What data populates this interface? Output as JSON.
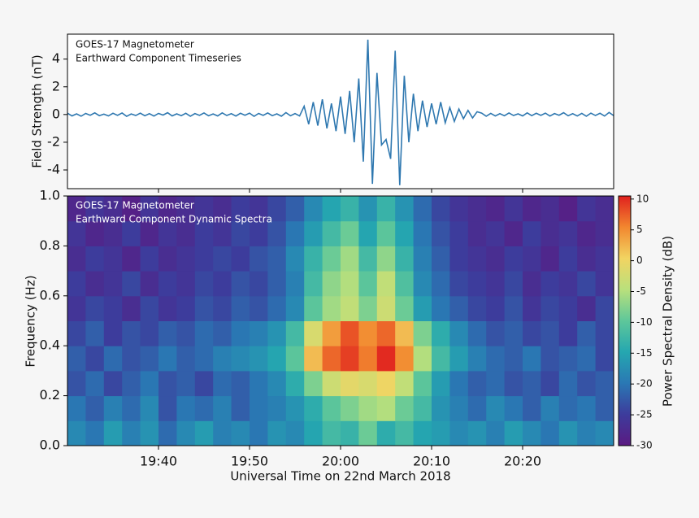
{
  "chart_data": [
    {
      "type": "line",
      "title": "GOES-17 Magnetometer",
      "subtitle": "Earthward Component Timeseries",
      "ylabel": "Field Strength (nT)",
      "xlim": [
        1170,
        1230
      ],
      "ylim": [
        -5.35,
        5.8
      ],
      "yticks": [
        -4,
        -2,
        0,
        2,
        4
      ],
      "color": "#2f78b0",
      "x": [
        1170,
        1170.5,
        1171,
        1171.5,
        1172,
        1172.5,
        1173,
        1173.5,
        1174,
        1174.5,
        1175,
        1175.5,
        1176,
        1176.5,
        1177,
        1177.5,
        1178,
        1178.5,
        1179,
        1179.5,
        1180,
        1180.5,
        1181,
        1181.5,
        1182,
        1182.5,
        1183,
        1183.5,
        1184,
        1184.5,
        1185,
        1185.5,
        1186,
        1186.5,
        1187,
        1187.5,
        1188,
        1188.5,
        1189,
        1189.5,
        1190,
        1190.5,
        1191,
        1191.5,
        1192,
        1192.5,
        1193,
        1193.5,
        1194,
        1194.5,
        1195,
        1195.5,
        1196,
        1196.5,
        1197,
        1197.5,
        1198,
        1198.5,
        1199,
        1199.5,
        1200,
        1200.5,
        1201,
        1201.5,
        1202,
        1202.5,
        1203,
        1203.5,
        1204,
        1204.5,
        1205,
        1205.5,
        1206,
        1206.5,
        1207,
        1207.5,
        1208,
        1208.5,
        1209,
        1209.5,
        1210,
        1210.5,
        1211,
        1211.5,
        1212,
        1212.5,
        1213,
        1213.5,
        1214,
        1214.5,
        1215,
        1215.5,
        1216,
        1216.5,
        1217,
        1217.5,
        1218,
        1218.5,
        1219,
        1219.5,
        1220,
        1220.5,
        1221,
        1221.5,
        1222,
        1222.5,
        1223,
        1223.5,
        1224,
        1224.5,
        1225,
        1225.5,
        1226,
        1226.5,
        1227,
        1227.5,
        1228,
        1228.5,
        1229,
        1229.5,
        1230
      ],
      "values": [
        0.1,
        -0.1,
        0.05,
        -0.12,
        0.08,
        -0.05,
        0.12,
        -0.08,
        0.03,
        -0.1,
        0.09,
        -0.06,
        0.11,
        -0.13,
        0.04,
        -0.07,
        0.1,
        -0.09,
        0.06,
        -0.11,
        0.08,
        -0.04,
        0.13,
        -0.1,
        0.05,
        -0.08,
        0.09,
        -0.12,
        0.07,
        -0.06,
        0.11,
        -0.09,
        0.04,
        -0.1,
        0.12,
        -0.07,
        0.06,
        -0.11,
        0.09,
        -0.05,
        0.1,
        -0.13,
        0.08,
        -0.06,
        0.11,
        -0.08,
        0.05,
        -0.12,
        0.14,
        -0.09,
        0.07,
        -0.1,
        0.6,
        -0.7,
        0.9,
        -0.8,
        1.1,
        -1.0,
        0.8,
        -1.2,
        1.3,
        -1.4,
        1.7,
        -2.0,
        2.6,
        -3.4,
        5.4,
        -5.0,
        3.0,
        -2.2,
        -1.8,
        -3.2,
        4.6,
        -5.1,
        2.8,
        -2.0,
        1.5,
        -1.2,
        1.0,
        -0.9,
        0.8,
        -0.7,
        0.9,
        -0.6,
        0.5,
        -0.5,
        0.4,
        -0.3,
        0.3,
        -0.25,
        0.2,
        0.1,
        -0.12,
        0.08,
        -0.1,
        0.06,
        -0.09,
        0.11,
        -0.07,
        0.05,
        -0.1,
        0.12,
        -0.08,
        0.09,
        -0.06,
        0.1,
        -0.11,
        0.07,
        -0.05,
        0.13,
        -0.09,
        0.06,
        -0.1,
        0.08,
        -0.12,
        0.1,
        -0.07,
        0.09,
        -0.11,
        0.15,
        -0.08
      ]
    },
    {
      "type": "heatmap",
      "title": "GOES-17 Magnetometer",
      "subtitle": "Earthward Component Dynamic Spectra",
      "xlabel": "Universal Time on 22nd March 2018",
      "ylabel": "Frequency (Hz)",
      "zlabel": "Power Spectral Density (dB)",
      "xlim": [
        1170,
        1230
      ],
      "xticks": [
        {
          "value": 1180,
          "label": "19:40"
        },
        {
          "value": 1190,
          "label": "19:50"
        },
        {
          "value": 1200,
          "label": "20:00"
        },
        {
          "value": 1210,
          "label": "20:10"
        },
        {
          "value": 1220,
          "label": "20:20"
        }
      ],
      "ylim": [
        0,
        1
      ],
      "yticks": [
        {
          "value": 0,
          "label": "0.0"
        },
        0.2,
        0.4,
        0.6,
        0.8,
        {
          "value": 1,
          "label": "1.0"
        }
      ],
      "zlim": [
        -30,
        10.5
      ],
      "zticks": [
        -30,
        -25,
        -20,
        -15,
        -10,
        -5,
        0,
        5,
        10
      ],
      "colorscale": [
        "#5b1a82",
        "#3d3c9c",
        "#2a78b4",
        "#25a7b0",
        "#5ec79a",
        "#b9e07c",
        "#f2d462",
        "#f2872f",
        "#e0201e"
      ],
      "z": [
        [
          -18,
          -20,
          -16,
          -19,
          -17,
          -21,
          -18,
          -16,
          -19,
          -18,
          -20,
          -17,
          -18,
          -15,
          -12,
          -13,
          -9,
          -14,
          -12,
          -15,
          -16,
          -18,
          -17,
          -19,
          -16,
          -18,
          -20,
          -17,
          -19,
          -18
        ],
        [
          -20,
          -22,
          -19,
          -21,
          -18,
          -23,
          -20,
          -21,
          -19,
          -22,
          -20,
          -19,
          -17,
          -14,
          -10,
          -8,
          -6,
          -5,
          -9,
          -12,
          -17,
          -19,
          -21,
          -18,
          -20,
          -22,
          -19,
          -21,
          -20,
          -22
        ],
        [
          -23,
          -21,
          -24,
          -22,
          -20,
          -23,
          -22,
          -24,
          -21,
          -22,
          -20,
          -18,
          -14,
          -8,
          -3,
          -1,
          -2,
          0,
          -4,
          -10,
          -16,
          -20,
          -22,
          -21,
          -23,
          -22,
          -24,
          -21,
          -23,
          -22
        ],
        [
          -22,
          -24,
          -21,
          -23,
          -22,
          -20,
          -22,
          -21,
          -19,
          -18,
          -17,
          -15,
          -10,
          2,
          7,
          9,
          6,
          10,
          5,
          -5,
          -12,
          -16,
          -19,
          -21,
          -22,
          -20,
          -23,
          -22,
          -21,
          -24
        ],
        [
          -24,
          -22,
          -25,
          -23,
          -24,
          -22,
          -23,
          -21,
          -22,
          -20,
          -19,
          -17,
          -12,
          -2,
          4,
          8,
          5,
          7,
          2,
          -8,
          -14,
          -18,
          -21,
          -23,
          -22,
          -24,
          -23,
          -25,
          -22,
          -24
        ],
        [
          -26,
          -24,
          -25,
          -27,
          -24,
          -26,
          -25,
          -23,
          -24,
          -22,
          -23,
          -21,
          -18,
          -10,
          -6,
          -4,
          -8,
          -3,
          -9,
          -16,
          -20,
          -22,
          -24,
          -25,
          -23,
          -26,
          -24,
          -25,
          -27,
          -24
        ],
        [
          -25,
          -27,
          -26,
          -24,
          -27,
          -25,
          -26,
          -24,
          -25,
          -23,
          -24,
          -22,
          -19,
          -12,
          -7,
          -5,
          -10,
          -4,
          -11,
          -18,
          -21,
          -24,
          -25,
          -26,
          -24,
          -27,
          -25,
          -26,
          -24,
          -26
        ],
        [
          -27,
          -25,
          -26,
          -28,
          -25,
          -27,
          -26,
          -25,
          -24,
          -25,
          -23,
          -22,
          -18,
          -13,
          -9,
          -6,
          -12,
          -7,
          -13,
          -19,
          -22,
          -25,
          -26,
          -27,
          -25,
          -26,
          -28,
          -25,
          -27,
          -26
        ],
        [
          -26,
          -28,
          -27,
          -25,
          -28,
          -26,
          -27,
          -25,
          -26,
          -24,
          -25,
          -23,
          -20,
          -16,
          -12,
          -9,
          -15,
          -10,
          -15,
          -20,
          -23,
          -25,
          -27,
          -26,
          -28,
          -25,
          -27,
          -26,
          -28,
          -27
        ],
        [
          -28,
          -26,
          -27,
          -29,
          -26,
          -28,
          -27,
          -26,
          -27,
          -25,
          -26,
          -24,
          -22,
          -18,
          -15,
          -13,
          -17,
          -13,
          -17,
          -21,
          -24,
          -26,
          -27,
          -28,
          -26,
          -28,
          -27,
          -29,
          -26,
          -27
        ]
      ]
    }
  ]
}
